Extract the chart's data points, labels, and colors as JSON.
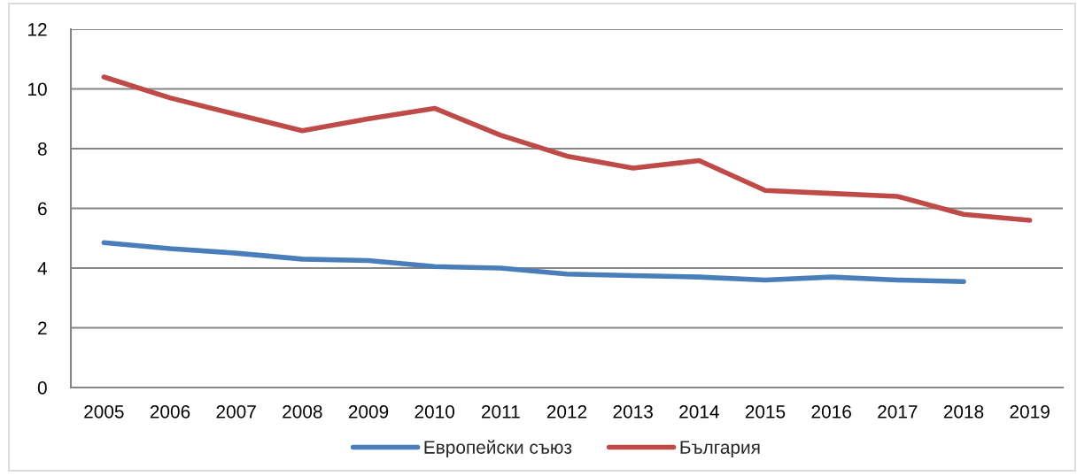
{
  "chart_data": {
    "type": "line",
    "categories": [
      "2005",
      "2006",
      "2007",
      "2008",
      "2009",
      "2010",
      "2011",
      "2012",
      "2013",
      "2014",
      "2015",
      "2016",
      "2017",
      "2018",
      "2019"
    ],
    "series": [
      {
        "name": "Европейски съюз",
        "color": "#4a7ebb",
        "values": [
          4.85,
          4.65,
          4.5,
          4.3,
          4.25,
          4.05,
          4.0,
          3.8,
          3.75,
          3.7,
          3.6,
          3.7,
          3.6,
          3.55,
          null
        ]
      },
      {
        "name": "България",
        "color": "#be4b48",
        "values": [
          10.4,
          9.7,
          9.15,
          8.6,
          9.0,
          9.35,
          8.45,
          7.75,
          7.35,
          7.6,
          6.6,
          6.5,
          6.4,
          5.8,
          5.6
        ]
      }
    ],
    "ylim": [
      0,
      12
    ],
    "yticks": [
      0,
      2,
      4,
      6,
      8,
      10,
      12
    ],
    "grid": "y",
    "legend": "bottom",
    "line_style": "solid"
  }
}
